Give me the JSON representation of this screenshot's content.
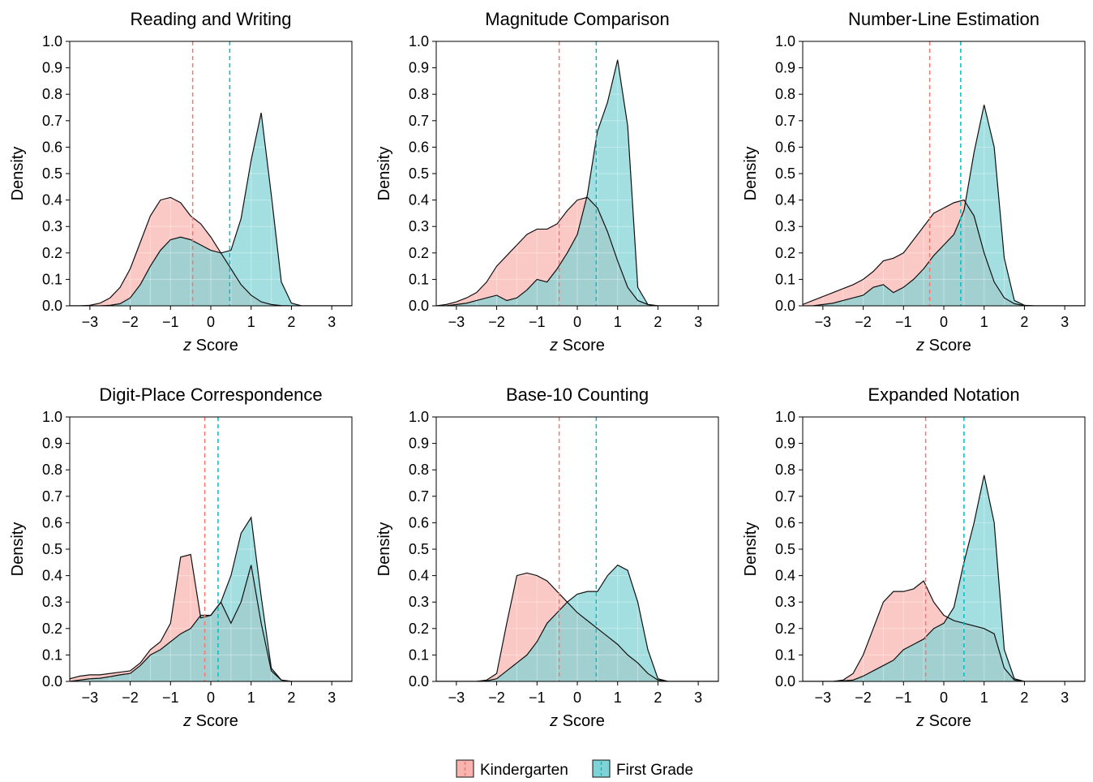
{
  "colors": {
    "kindergarten": "#F8766D",
    "first_grade": "#00BFC4",
    "kindergarten_fill": "#F9B4AF",
    "first_grade_fill": "#7FD2D5"
  },
  "legend": {
    "items": [
      {
        "key": "kindergarten",
        "label": "Kindergarten"
      },
      {
        "key": "first_grade",
        "label": "First Grade"
      }
    ],
    "placement": "bottom"
  },
  "chart_data": [
    {
      "type": "area",
      "title": "Reading and Writing",
      "xlabel_italic": "z",
      "xlabel": "Score",
      "ylabel": "Density",
      "xlim": [
        -3.5,
        3.5
      ],
      "ylim": [
        0,
        1.0
      ],
      "xticks": [
        -3,
        -2,
        -1,
        0,
        1,
        2,
        3
      ],
      "yticks": [
        0.0,
        0.1,
        0.2,
        0.3,
        0.4,
        0.5,
        0.6,
        0.7,
        0.8,
        0.9,
        1.0
      ],
      "x": [
        -3.5,
        -3.25,
        -3.0,
        -2.75,
        -2.5,
        -2.25,
        -2.0,
        -1.75,
        -1.5,
        -1.25,
        -1.0,
        -0.75,
        -0.5,
        -0.25,
        0.0,
        0.25,
        0.5,
        0.75,
        1.0,
        1.25,
        1.5,
        1.75,
        2.0,
        2.25,
        2.5,
        2.75,
        3.0,
        3.25,
        3.5
      ],
      "series": [
        {
          "key": "kindergarten",
          "name": "Kindergarten",
          "mean": -0.45,
          "values": [
            0,
            0,
            0.002,
            0.01,
            0.03,
            0.07,
            0.14,
            0.24,
            0.34,
            0.4,
            0.41,
            0.39,
            0.34,
            0.31,
            0.26,
            0.2,
            0.14,
            0.08,
            0.04,
            0.015,
            0.005,
            0.001,
            0,
            0,
            0,
            0,
            0,
            0,
            0
          ]
        },
        {
          "key": "first_grade",
          "name": "First Grade",
          "mean": 0.47,
          "values": [
            0,
            0,
            0,
            0,
            0.002,
            0.008,
            0.03,
            0.08,
            0.15,
            0.21,
            0.25,
            0.26,
            0.25,
            0.23,
            0.21,
            0.2,
            0.21,
            0.33,
            0.55,
            0.73,
            0.42,
            0.09,
            0.01,
            0,
            0,
            0,
            0,
            0,
            0
          ]
        }
      ]
    },
    {
      "type": "area",
      "title": "Magnitude Comparison",
      "xlabel_italic": "z",
      "xlabel": "Score",
      "ylabel": "Density",
      "xlim": [
        -3.5,
        3.5
      ],
      "ylim": [
        0,
        1.0
      ],
      "xticks": [
        -3,
        -2,
        -1,
        0,
        1,
        2,
        3
      ],
      "yticks": [
        0.0,
        0.1,
        0.2,
        0.3,
        0.4,
        0.5,
        0.6,
        0.7,
        0.8,
        0.9,
        1.0
      ],
      "x": [
        -3.5,
        -3.25,
        -3.0,
        -2.75,
        -2.5,
        -2.25,
        -2.0,
        -1.75,
        -1.5,
        -1.25,
        -1.0,
        -0.75,
        -0.5,
        -0.25,
        0.0,
        0.25,
        0.5,
        0.75,
        1.0,
        1.25,
        1.5,
        1.75,
        2.0,
        2.25,
        2.5,
        2.75,
        3.0,
        3.25,
        3.5
      ],
      "series": [
        {
          "key": "kindergarten",
          "name": "Kindergarten",
          "mean": -0.45,
          "values": [
            0,
            0.005,
            0.015,
            0.03,
            0.05,
            0.09,
            0.15,
            0.19,
            0.23,
            0.27,
            0.29,
            0.29,
            0.31,
            0.36,
            0.4,
            0.41,
            0.37,
            0.28,
            0.17,
            0.07,
            0.02,
            0.005,
            0,
            0,
            0,
            0,
            0,
            0,
            0
          ]
        },
        {
          "key": "first_grade",
          "name": "First Grade",
          "mean": 0.47,
          "values": [
            0,
            0,
            0.005,
            0.01,
            0.02,
            0.03,
            0.04,
            0.02,
            0.03,
            0.06,
            0.1,
            0.09,
            0.14,
            0.2,
            0.27,
            0.42,
            0.66,
            0.77,
            0.93,
            0.68,
            0.07,
            0.005,
            0,
            0,
            0,
            0,
            0,
            0,
            0
          ]
        }
      ]
    },
    {
      "type": "area",
      "title": "Number-Line Estimation",
      "xlabel_italic": "z",
      "xlabel": "Score",
      "ylabel": "Density",
      "xlim": [
        -3.5,
        3.5
      ],
      "ylim": [
        0,
        1.0
      ],
      "xticks": [
        -3,
        -2,
        -1,
        0,
        1,
        2,
        3
      ],
      "yticks": [
        0.0,
        0.1,
        0.2,
        0.3,
        0.4,
        0.5,
        0.6,
        0.7,
        0.8,
        0.9,
        1.0
      ],
      "x": [
        -3.5,
        -3.25,
        -3.0,
        -2.75,
        -2.5,
        -2.25,
        -2.0,
        -1.75,
        -1.5,
        -1.25,
        -1.0,
        -0.75,
        -0.5,
        -0.25,
        0.0,
        0.25,
        0.5,
        0.75,
        1.0,
        1.25,
        1.5,
        1.75,
        2.0,
        2.25,
        2.5,
        2.75,
        3.0,
        3.25,
        3.5
      ],
      "series": [
        {
          "key": "kindergarten",
          "name": "Kindergarten",
          "mean": -0.35,
          "values": [
            0.005,
            0.02,
            0.035,
            0.05,
            0.065,
            0.08,
            0.1,
            0.13,
            0.17,
            0.18,
            0.2,
            0.25,
            0.3,
            0.35,
            0.37,
            0.39,
            0.4,
            0.34,
            0.2,
            0.09,
            0.03,
            0.008,
            0.001,
            0,
            0,
            0,
            0,
            0,
            0
          ]
        },
        {
          "key": "first_grade",
          "name": "First Grade",
          "mean": 0.42,
          "values": [
            0,
            0,
            0.005,
            0.01,
            0.02,
            0.03,
            0.04,
            0.07,
            0.08,
            0.05,
            0.07,
            0.1,
            0.14,
            0.19,
            0.23,
            0.27,
            0.36,
            0.58,
            0.76,
            0.6,
            0.18,
            0.02,
            0.002,
            0,
            0,
            0,
            0,
            0,
            0
          ]
        }
      ]
    },
    {
      "type": "area",
      "title": "Digit-Place Correspondence",
      "xlabel_italic": "z",
      "xlabel": "Score",
      "ylabel": "Density",
      "xlim": [
        -3.5,
        3.5
      ],
      "ylim": [
        0,
        1.0
      ],
      "xticks": [
        -3,
        -2,
        -1,
        0,
        1,
        2,
        3
      ],
      "yticks": [
        0.0,
        0.1,
        0.2,
        0.3,
        0.4,
        0.5,
        0.6,
        0.7,
        0.8,
        0.9,
        1.0
      ],
      "x": [
        -3.5,
        -3.25,
        -3.0,
        -2.75,
        -2.5,
        -2.25,
        -2.0,
        -1.75,
        -1.5,
        -1.25,
        -1.0,
        -0.75,
        -0.5,
        -0.25,
        0.0,
        0.25,
        0.5,
        0.75,
        1.0,
        1.25,
        1.5,
        1.75,
        2.0,
        2.25,
        2.5,
        2.75,
        3.0,
        3.25,
        3.5
      ],
      "series": [
        {
          "key": "kindergarten",
          "name": "Kindergarten",
          "mean": -0.15,
          "values": [
            0.01,
            0.02,
            0.025,
            0.025,
            0.03,
            0.035,
            0.04,
            0.07,
            0.12,
            0.15,
            0.22,
            0.47,
            0.48,
            0.24,
            0.25,
            0.3,
            0.22,
            0.3,
            0.44,
            0.22,
            0.04,
            0.005,
            0,
            0,
            0,
            0,
            0,
            0,
            0
          ]
        },
        {
          "key": "first_grade",
          "name": "First Grade",
          "mean": 0.18,
          "values": [
            0,
            0.005,
            0.01,
            0.012,
            0.018,
            0.025,
            0.03,
            0.06,
            0.1,
            0.12,
            0.15,
            0.18,
            0.2,
            0.25,
            0.25,
            0.3,
            0.4,
            0.56,
            0.62,
            0.32,
            0.05,
            0.005,
            0,
            0,
            0,
            0,
            0,
            0,
            0
          ]
        }
      ]
    },
    {
      "type": "area",
      "title": "Base-10 Counting",
      "xlabel_italic": "z",
      "xlabel": "Score",
      "ylabel": "Density",
      "xlim": [
        -3.5,
        3.5
      ],
      "ylim": [
        0,
        1.0
      ],
      "xticks": [
        -3,
        -2,
        -1,
        0,
        1,
        2,
        3
      ],
      "yticks": [
        0.0,
        0.1,
        0.2,
        0.3,
        0.4,
        0.5,
        0.6,
        0.7,
        0.8,
        0.9,
        1.0
      ],
      "x": [
        -3.5,
        -3.25,
        -3.0,
        -2.75,
        -2.5,
        -2.25,
        -2.0,
        -1.75,
        -1.5,
        -1.25,
        -1.0,
        -0.75,
        -0.5,
        -0.25,
        0.0,
        0.25,
        0.5,
        0.75,
        1.0,
        1.25,
        1.5,
        1.75,
        2.0,
        2.25,
        2.5,
        2.75,
        3.0,
        3.25,
        3.5
      ],
      "series": [
        {
          "key": "kindergarten",
          "name": "Kindergarten",
          "mean": -0.45,
          "values": [
            0,
            0,
            0,
            0,
            0,
            0.005,
            0.03,
            0.22,
            0.4,
            0.41,
            0.4,
            0.38,
            0.34,
            0.3,
            0.26,
            0.23,
            0.2,
            0.17,
            0.14,
            0.1,
            0.07,
            0.03,
            0.005,
            0,
            0,
            0,
            0,
            0,
            0
          ]
        },
        {
          "key": "first_grade",
          "name": "First Grade",
          "mean": 0.47,
          "values": [
            0,
            0,
            0,
            0,
            0,
            0.002,
            0.01,
            0.04,
            0.07,
            0.1,
            0.15,
            0.22,
            0.26,
            0.3,
            0.33,
            0.34,
            0.34,
            0.4,
            0.44,
            0.42,
            0.3,
            0.12,
            0.01,
            0,
            0,
            0,
            0,
            0,
            0
          ]
        }
      ]
    },
    {
      "type": "area",
      "title": "Expanded Notation",
      "xlabel_italic": "z",
      "xlabel": "Score",
      "ylabel": "Density",
      "xlim": [
        -3.5,
        3.5
      ],
      "ylim": [
        0,
        1.0
      ],
      "xticks": [
        -3,
        -2,
        -1,
        0,
        1,
        2,
        3
      ],
      "yticks": [
        0.0,
        0.1,
        0.2,
        0.3,
        0.4,
        0.5,
        0.6,
        0.7,
        0.8,
        0.9,
        1.0
      ],
      "x": [
        -3.5,
        -3.25,
        -3.0,
        -2.75,
        -2.5,
        -2.25,
        -2.0,
        -1.75,
        -1.5,
        -1.25,
        -1.0,
        -0.75,
        -0.5,
        -0.25,
        0.0,
        0.25,
        0.5,
        0.75,
        1.0,
        1.25,
        1.5,
        1.75,
        2.0,
        2.25,
        2.5,
        2.75,
        3.0,
        3.25,
        3.5
      ],
      "series": [
        {
          "key": "kindergarten",
          "name": "Kindergarten",
          "mean": -0.45,
          "values": [
            0,
            0,
            0,
            0,
            0.005,
            0.03,
            0.1,
            0.2,
            0.3,
            0.34,
            0.34,
            0.35,
            0.38,
            0.3,
            0.25,
            0.23,
            0.22,
            0.21,
            0.2,
            0.18,
            0.05,
            0.005,
            0,
            0,
            0,
            0,
            0,
            0,
            0
          ]
        },
        {
          "key": "first_grade",
          "name": "First Grade",
          "mean": 0.5,
          "values": [
            0,
            0,
            0,
            0,
            0.002,
            0.005,
            0.02,
            0.04,
            0.06,
            0.08,
            0.12,
            0.14,
            0.16,
            0.2,
            0.22,
            0.28,
            0.45,
            0.6,
            0.78,
            0.6,
            0.12,
            0.01,
            0,
            0,
            0,
            0,
            0,
            0,
            0
          ]
        }
      ]
    }
  ]
}
